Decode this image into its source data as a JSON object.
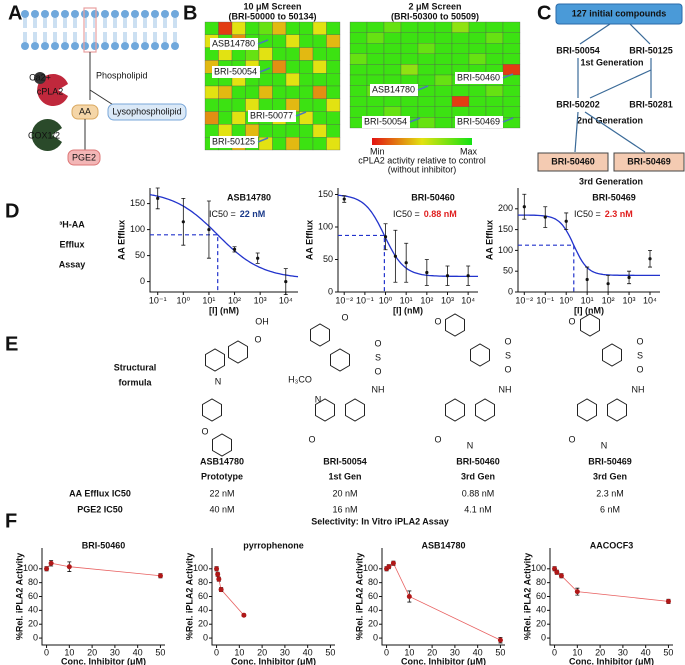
{
  "panel_labels": [
    "A",
    "B",
    "C",
    "D",
    "E",
    "F"
  ],
  "pathway": {
    "phospholipid": "Phospholipid",
    "ca": "Ca2+",
    "enzyme": "cPLA2",
    "aa": "AA",
    "lyso": "Lysophospholipid",
    "cox": "COX1/2",
    "pge": "PGE2"
  },
  "screens": [
    {
      "title": "10 μM Screen",
      "subtitle": "(BRI-50000 to 50134)",
      "labels": [
        "ASB14780",
        "BRI-50054",
        "BRI-50077",
        "BRI-50125"
      ],
      "grid": [
        [
          0.9,
          0.1,
          0.5,
          0.9,
          0.8,
          0.4,
          0.9,
          0.9,
          0.5,
          0.9
        ],
        [
          0.5,
          0.9,
          0.3,
          0.9,
          0.9,
          0.9,
          0.5,
          0.9,
          0.9,
          0.4
        ],
        [
          0.9,
          0.5,
          0.9,
          0.8,
          0.5,
          0.9,
          0.9,
          0.4,
          0.9,
          0.9
        ],
        [
          0.4,
          0.9,
          0.9,
          0.5,
          0.9,
          0.3,
          0.9,
          0.9,
          0.5,
          0.9
        ],
        [
          0.9,
          0.9,
          0.5,
          0.9,
          0.9,
          0.9,
          0.5,
          0.9,
          0.9,
          0.9
        ],
        [
          0.5,
          0.4,
          0.9,
          0.9,
          0.4,
          0.9,
          0.9,
          0.9,
          0.3,
          0.9
        ],
        [
          0.9,
          0.9,
          0.9,
          0.5,
          0.9,
          0.9,
          0.4,
          0.9,
          0.9,
          0.5
        ],
        [
          0.3,
          0.9,
          0.5,
          0.9,
          0.9,
          0.5,
          0.9,
          0.5,
          0.9,
          0.9
        ],
        [
          0.9,
          0.5,
          0.9,
          0.4,
          0.9,
          0.9,
          0.9,
          0.9,
          0.5,
          0.9
        ],
        [
          0.9,
          0.9,
          0.4,
          0.9,
          0.5,
          0.9,
          0.4,
          0.9,
          0.9,
          0.5
        ]
      ]
    },
    {
      "title": "2 μM Screen",
      "subtitle": "(BRI-50300 to 50509)",
      "labels": [
        "BRI-50460",
        "ASB14780",
        "BRI-50054",
        "BRI-50469"
      ],
      "grid": [
        [
          0.9,
          0.9,
          0.8,
          0.9,
          0.9,
          0.9,
          0.7,
          0.9,
          0.9,
          0.9
        ],
        [
          0.9,
          0.8,
          0.9,
          0.9,
          0.9,
          0.9,
          0.9,
          0.9,
          0.8,
          0.9
        ],
        [
          0.9,
          0.9,
          0.9,
          0.9,
          0.8,
          0.9,
          0.9,
          0.9,
          0.9,
          0.9
        ],
        [
          0.8,
          0.9,
          0.9,
          0.9,
          0.9,
          0.9,
          0.9,
          0.8,
          0.9,
          0.9
        ],
        [
          0.9,
          0.9,
          0.9,
          0.7,
          0.9,
          0.9,
          0.9,
          0.9,
          0.9,
          0.1
        ],
        [
          0.9,
          0.9,
          0.9,
          0.9,
          0.9,
          0.8,
          0.9,
          0.9,
          0.9,
          0.9
        ],
        [
          0.9,
          0.8,
          0.9,
          0.9,
          0.9,
          0.9,
          0.9,
          0.9,
          0.8,
          0.9
        ],
        [
          0.9,
          0.9,
          0.9,
          0.9,
          0.9,
          0.9,
          0.1,
          0.9,
          0.9,
          0.9
        ],
        [
          0.9,
          0.9,
          0.8,
          0.9,
          0.9,
          0.9,
          0.9,
          0.9,
          0.9,
          0.9
        ],
        [
          0.9,
          0.9,
          0.9,
          0.9,
          0.8,
          0.9,
          0.9,
          0.9,
          0.9,
          0.9
        ]
      ]
    }
  ],
  "screen_legend": {
    "min": "Min",
    "max": "Max",
    "caption": "cPLA2 activity relative to control",
    "caption2": "(without inhibitor)"
  },
  "tree": {
    "root": "127 initial compounds",
    "gen1": [
      "BRI-50054",
      "BRI-50125"
    ],
    "gen1_label": "1st Generation",
    "gen2": [
      "BRI-50202",
      "BRI-50281"
    ],
    "gen2_label": "2nd Generation",
    "gen3": [
      "BRI-50460",
      "BRI-50469"
    ],
    "gen3_label": "3rd Generation"
  },
  "efflux": {
    "label": [
      "³H-AA",
      "Efflux",
      "Assay"
    ],
    "plots": [
      {
        "type": "dose_response",
        "title": "ASB14780",
        "ic50_prefix": "IC50 =",
        "ic50_label": "22 nM",
        "ic50_color": "#1a3a8a",
        "ylabel": "AA Efflux",
        "xlabel": "[I] (nM)",
        "log_x": true,
        "xlim": [
          0.05,
          30000
        ],
        "xticks": [
          {
            "value": 0.1,
            "label": "10⁻¹"
          },
          {
            "value": 1,
            "label": "10⁰"
          },
          {
            "value": 10,
            "label": "10¹"
          },
          {
            "value": 100,
            "label": "10²"
          },
          {
            "value": 1000,
            "label": "10³"
          },
          {
            "value": 10000,
            "label": "10⁴"
          }
        ],
        "ylim": [
          -20,
          180
        ],
        "yticks": [
          0,
          50,
          100,
          150
        ],
        "x": [
          0.1,
          1,
          10,
          100,
          800,
          10000
        ],
        "values": [
          160,
          115,
          100,
          62,
          45,
          0
        ],
        "errors": [
          20,
          45,
          55,
          5,
          10,
          25
        ],
        "fit": {
          "top": 175,
          "bottom": 5,
          "ic50": 22,
          "hill": 0.5
        }
      },
      {
        "type": "dose_response",
        "title": "BRI-50460",
        "ic50_prefix": "IC50 =",
        "ic50_label": "0.88 nM",
        "ic50_color": "#e02020",
        "ylabel": "AA Efflux",
        "xlabel": "[I] (nM)",
        "log_x": true,
        "xlim": [
          0.005,
          30000
        ],
        "xticks": [
          {
            "value": 0.01,
            "label": "10⁻²"
          },
          {
            "value": 0.1,
            "label": "10⁻¹"
          },
          {
            "value": 1,
            "label": "10⁰"
          },
          {
            "value": 10,
            "label": "10¹"
          },
          {
            "value": 100,
            "label": "10²"
          },
          {
            "value": 1000,
            "label": "10³"
          },
          {
            "value": 10000,
            "label": "10⁴"
          }
        ],
        "ylim": [
          0,
          160
        ],
        "yticks": [
          0,
          50,
          100,
          150
        ],
        "x": [
          0.01,
          1,
          3,
          10,
          100,
          1000,
          10000
        ],
        "values": [
          143,
          85,
          55,
          45,
          30,
          25,
          25
        ],
        "errors": [
          5,
          20,
          40,
          30,
          20,
          15,
          15
        ],
        "fit": {
          "top": 150,
          "bottom": 24,
          "ic50": 0.88,
          "hill": 0.9
        }
      },
      {
        "type": "dose_response",
        "title": "BRI-50469",
        "ic50_prefix": "IC50 =",
        "ic50_label": "2.3 nM",
        "ic50_color": "#e02020",
        "ylabel": "AA Efflux",
        "xlabel": "[I] (nM)",
        "log_x": true,
        "xlim": [
          0.005,
          30000
        ],
        "xticks": [
          {
            "value": 0.01,
            "label": "10⁻²"
          },
          {
            "value": 0.1,
            "label": "10⁻¹"
          },
          {
            "value": 1,
            "label": "10⁰"
          },
          {
            "value": 10,
            "label": "10¹"
          },
          {
            "value": 100,
            "label": "10²"
          },
          {
            "value": 1000,
            "label": "10³"
          },
          {
            "value": 10000,
            "label": "10⁴"
          }
        ],
        "ylim": [
          0,
          250
        ],
        "yticks": [
          0,
          50,
          100,
          150,
          200
        ],
        "x": [
          0.01,
          0.1,
          1,
          10,
          100,
          1000,
          10000
        ],
        "values": [
          205,
          180,
          170,
          30,
          20,
          35,
          80
        ],
        "errors": [
          30,
          25,
          20,
          30,
          20,
          15,
          20
        ],
        "fit": {
          "top": 185,
          "bottom": 40,
          "ic50": 2.3,
          "hill": 1.3
        }
      }
    ]
  },
  "structures": {
    "header": [
      "Structural",
      "formula"
    ],
    "compounds": [
      {
        "name": "ASB14780",
        "gen": "Prototype",
        "atoms": [
          "OH",
          "O",
          "N",
          "O"
        ]
      },
      {
        "name": "BRI-50054",
        "gen": "1st Gen",
        "atoms": [
          "O",
          "H₃CO",
          "S",
          "O",
          "O",
          "NH",
          "N",
          "O"
        ]
      },
      {
        "name": "BRI-50460",
        "gen": "3rd Gen",
        "atoms": [
          "O",
          "S",
          "O",
          "O",
          "NH",
          "O",
          "N"
        ]
      },
      {
        "name": "BRI-50469",
        "gen": "3rd Gen",
        "atoms": [
          "O",
          "S",
          "O",
          "O",
          "NH",
          "O",
          "N"
        ]
      }
    ],
    "rows": [
      {
        "label": "AA Efflux IC50",
        "values": [
          "22 nM",
          "20 nM",
          "0.88 nM",
          "2.3 nM"
        ]
      },
      {
        "label": "PGE2 IC50",
        "values": [
          "40 nM",
          "16 nM",
          "4.1 nM",
          "6 nM"
        ]
      }
    ]
  },
  "selectivity": {
    "title": "Selectivity: In Vitro iPLA2 Assay",
    "ylabel": "%Rel. iPLA2 Activity",
    "xlabel": "Conc. Inhibitor (μM)",
    "color": "#b01818",
    "line_color": "#e86060",
    "xlim": [
      -2,
      52
    ],
    "xticks": [
      0,
      10,
      20,
      30,
      40,
      50
    ],
    "ylim": [
      -10,
      130
    ],
    "yticks": [
      0,
      20,
      40,
      60,
      80,
      100
    ],
    "plots": [
      {
        "title": "BRI-50460",
        "x": [
          0,
          2,
          10,
          50
        ],
        "values": [
          100,
          108,
          103,
          90
        ],
        "errors": [
          3,
          4,
          7,
          3
        ]
      },
      {
        "title": "pyrrophenone",
        "x": [
          0,
          0.5,
          1,
          2,
          12
        ],
        "values": [
          100,
          92,
          85,
          70,
          33
        ],
        "errors": [
          3,
          3,
          3,
          3,
          2
        ]
      },
      {
        "title": "ASB14780",
        "x": [
          0,
          1,
          3,
          10,
          50
        ],
        "values": [
          100,
          103,
          108,
          60,
          -3
        ],
        "errors": [
          3,
          3,
          3,
          8,
          4
        ]
      },
      {
        "title": "AACOCF3",
        "x": [
          0,
          1,
          3,
          10,
          50
        ],
        "values": [
          100,
          95,
          90,
          67,
          53
        ],
        "errors": [
          3,
          3,
          3,
          5,
          3
        ]
      }
    ]
  }
}
